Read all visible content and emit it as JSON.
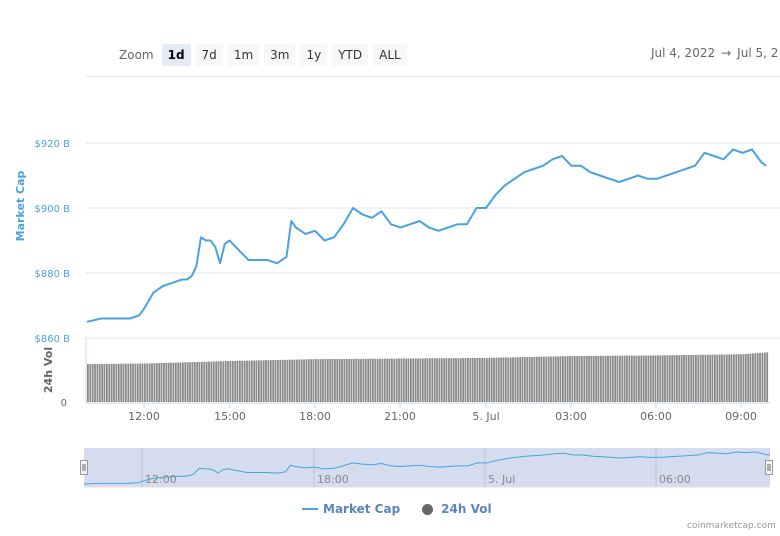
{
  "toolbar": {
    "zoom_label": "Zoom",
    "buttons": [
      {
        "label": "1d",
        "active": true
      },
      {
        "label": "7d",
        "active": false
      },
      {
        "label": "1m",
        "active": false
      },
      {
        "label": "3m",
        "active": false
      },
      {
        "label": "1y",
        "active": false
      },
      {
        "label": "YTD",
        "active": false
      },
      {
        "label": "ALL",
        "active": false
      }
    ]
  },
  "date_range": {
    "from": "Jul 4, 2022",
    "arrow": "→",
    "to": "Jul 5, 2"
  },
  "legend": {
    "market_cap": "Market Cap",
    "volume": "24h Vol"
  },
  "credit": "coinmarketcap.com",
  "colors": {
    "market_cap_line": "#4aa3df",
    "axis_label": "#4aa3df",
    "volume_bar": "#999999",
    "navigator_fill": "#ccd6eb",
    "legend_text": "#5b86bd"
  },
  "chart_data": [
    {
      "type": "line",
      "title": "",
      "ylabel": "Market Cap",
      "xlabel": "",
      "y_ticks": [
        "$920 B",
        "$900 B",
        "$880 B",
        "$860 B"
      ],
      "ylim": [
        860,
        925
      ],
      "y_unit": "USD billions",
      "x_ticks": [
        "12:00",
        "15:00",
        "18:00",
        "21:00",
        "5. Jul",
        "03:00",
        "06:00",
        "09:00"
      ],
      "grid": true,
      "series": [
        {
          "name": "Market Cap",
          "x": [
            "10:00",
            "10:30",
            "11:00",
            "11:30",
            "11:50",
            "12:00",
            "12:20",
            "12:40",
            "13:00",
            "13:20",
            "13:30",
            "13:40",
            "13:50",
            "14:00",
            "14:10",
            "14:20",
            "14:30",
            "14:40",
            "14:50",
            "15:00",
            "15:20",
            "15:40",
            "16:00",
            "16:20",
            "16:40",
            "17:00",
            "17:10",
            "17:20",
            "17:30",
            "17:40",
            "18:00",
            "18:20",
            "18:40",
            "19:00",
            "19:20",
            "19:40",
            "20:00",
            "20:20",
            "20:40",
            "21:00",
            "21:20",
            "21:40",
            "22:00",
            "22:20",
            "22:40",
            "23:00",
            "23:20",
            "23:40",
            "00:00",
            "00:20",
            "00:40",
            "01:00",
            "01:20",
            "01:40",
            "02:00",
            "02:20",
            "02:40",
            "03:00",
            "03:20",
            "03:40",
            "04:00",
            "04:20",
            "04:40",
            "05:00",
            "05:20",
            "05:40",
            "06:00",
            "06:20",
            "06:40",
            "07:00",
            "07:20",
            "07:40",
            "08:00",
            "08:20",
            "08:40",
            "09:00",
            "09:20",
            "09:40",
            "09:50"
          ],
          "values": [
            865,
            866,
            866,
            866,
            867,
            869,
            874,
            876,
            877,
            878,
            878,
            879,
            882,
            891,
            890,
            890,
            888,
            883,
            889,
            890,
            887,
            884,
            884,
            884,
            883,
            885,
            896,
            894,
            893,
            892,
            893,
            890,
            891,
            895,
            900,
            898,
            897,
            899,
            895,
            894,
            895,
            896,
            894,
            893,
            894,
            895,
            895,
            900,
            900,
            904,
            907,
            909,
            911,
            912,
            913,
            915,
            916,
            913,
            913,
            911,
            910,
            909,
            908,
            909,
            910,
            909,
            909,
            910,
            911,
            912,
            913,
            917,
            916,
            915,
            918,
            917,
            918,
            914,
            913
          ]
        }
      ]
    },
    {
      "type": "bar",
      "ylabel": "24h Vol",
      "y_ticks": [
        "0"
      ],
      "series": [
        {
          "name": "24h Vol",
          "note": "relative heights (0 baseline to top of pane), gradual rise through period",
          "x": [
            "10:00",
            "12:00",
            "15:00",
            "18:00",
            "21:00",
            "00:00",
            "03:00",
            "06:00",
            "09:00",
            "09:50"
          ],
          "values": [
            0.45,
            0.46,
            0.5,
            0.53,
            0.54,
            0.55,
            0.58,
            0.59,
            0.61,
            0.64
          ]
        }
      ]
    }
  ],
  "navigator": {
    "x_ticks": [
      "12:00",
      "18:00",
      "5. Jul",
      "06:00"
    ]
  }
}
